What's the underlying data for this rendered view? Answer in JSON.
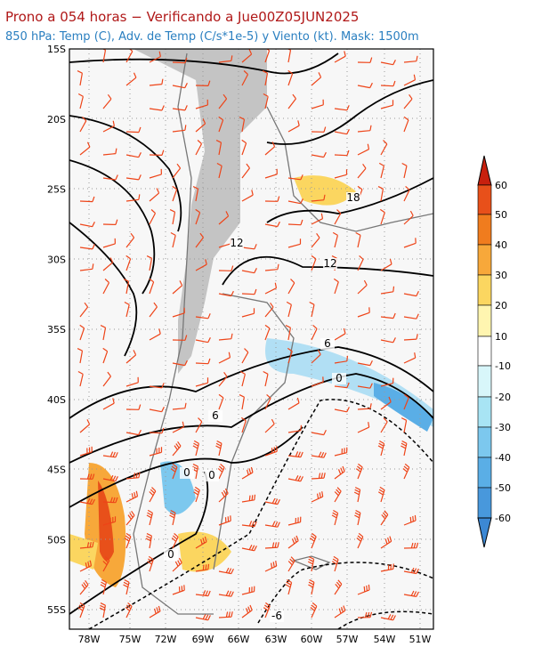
{
  "header": {
    "title": "Prono a 054 horas − Verificando a Jue00Z05JUN2025",
    "subtitle": "850 hPa: Temp (C), Adv. de Temp (C/s*1e-5) y Viento (kt). Mask: 1500m"
  },
  "map": {
    "lat_labels": [
      "15S",
      "20S",
      "25S",
      "30S",
      "35S",
      "40S",
      "45S",
      "50S",
      "55S"
    ],
    "lon_labels": [
      "78W",
      "75W",
      "72W",
      "69W",
      "66W",
      "63W",
      "60W",
      "57W",
      "54W",
      "51W"
    ],
    "contour_labels": [
      "18",
      "12",
      "12",
      "6",
      "0",
      "6",
      "0",
      "0",
      "0",
      "-6"
    ]
  },
  "colorbar": {
    "labels": [
      "60",
      "50",
      "40",
      "30",
      "20",
      "10",
      "-10",
      "-20",
      "-30",
      "-40",
      "-50",
      "-60"
    ]
  }
}
